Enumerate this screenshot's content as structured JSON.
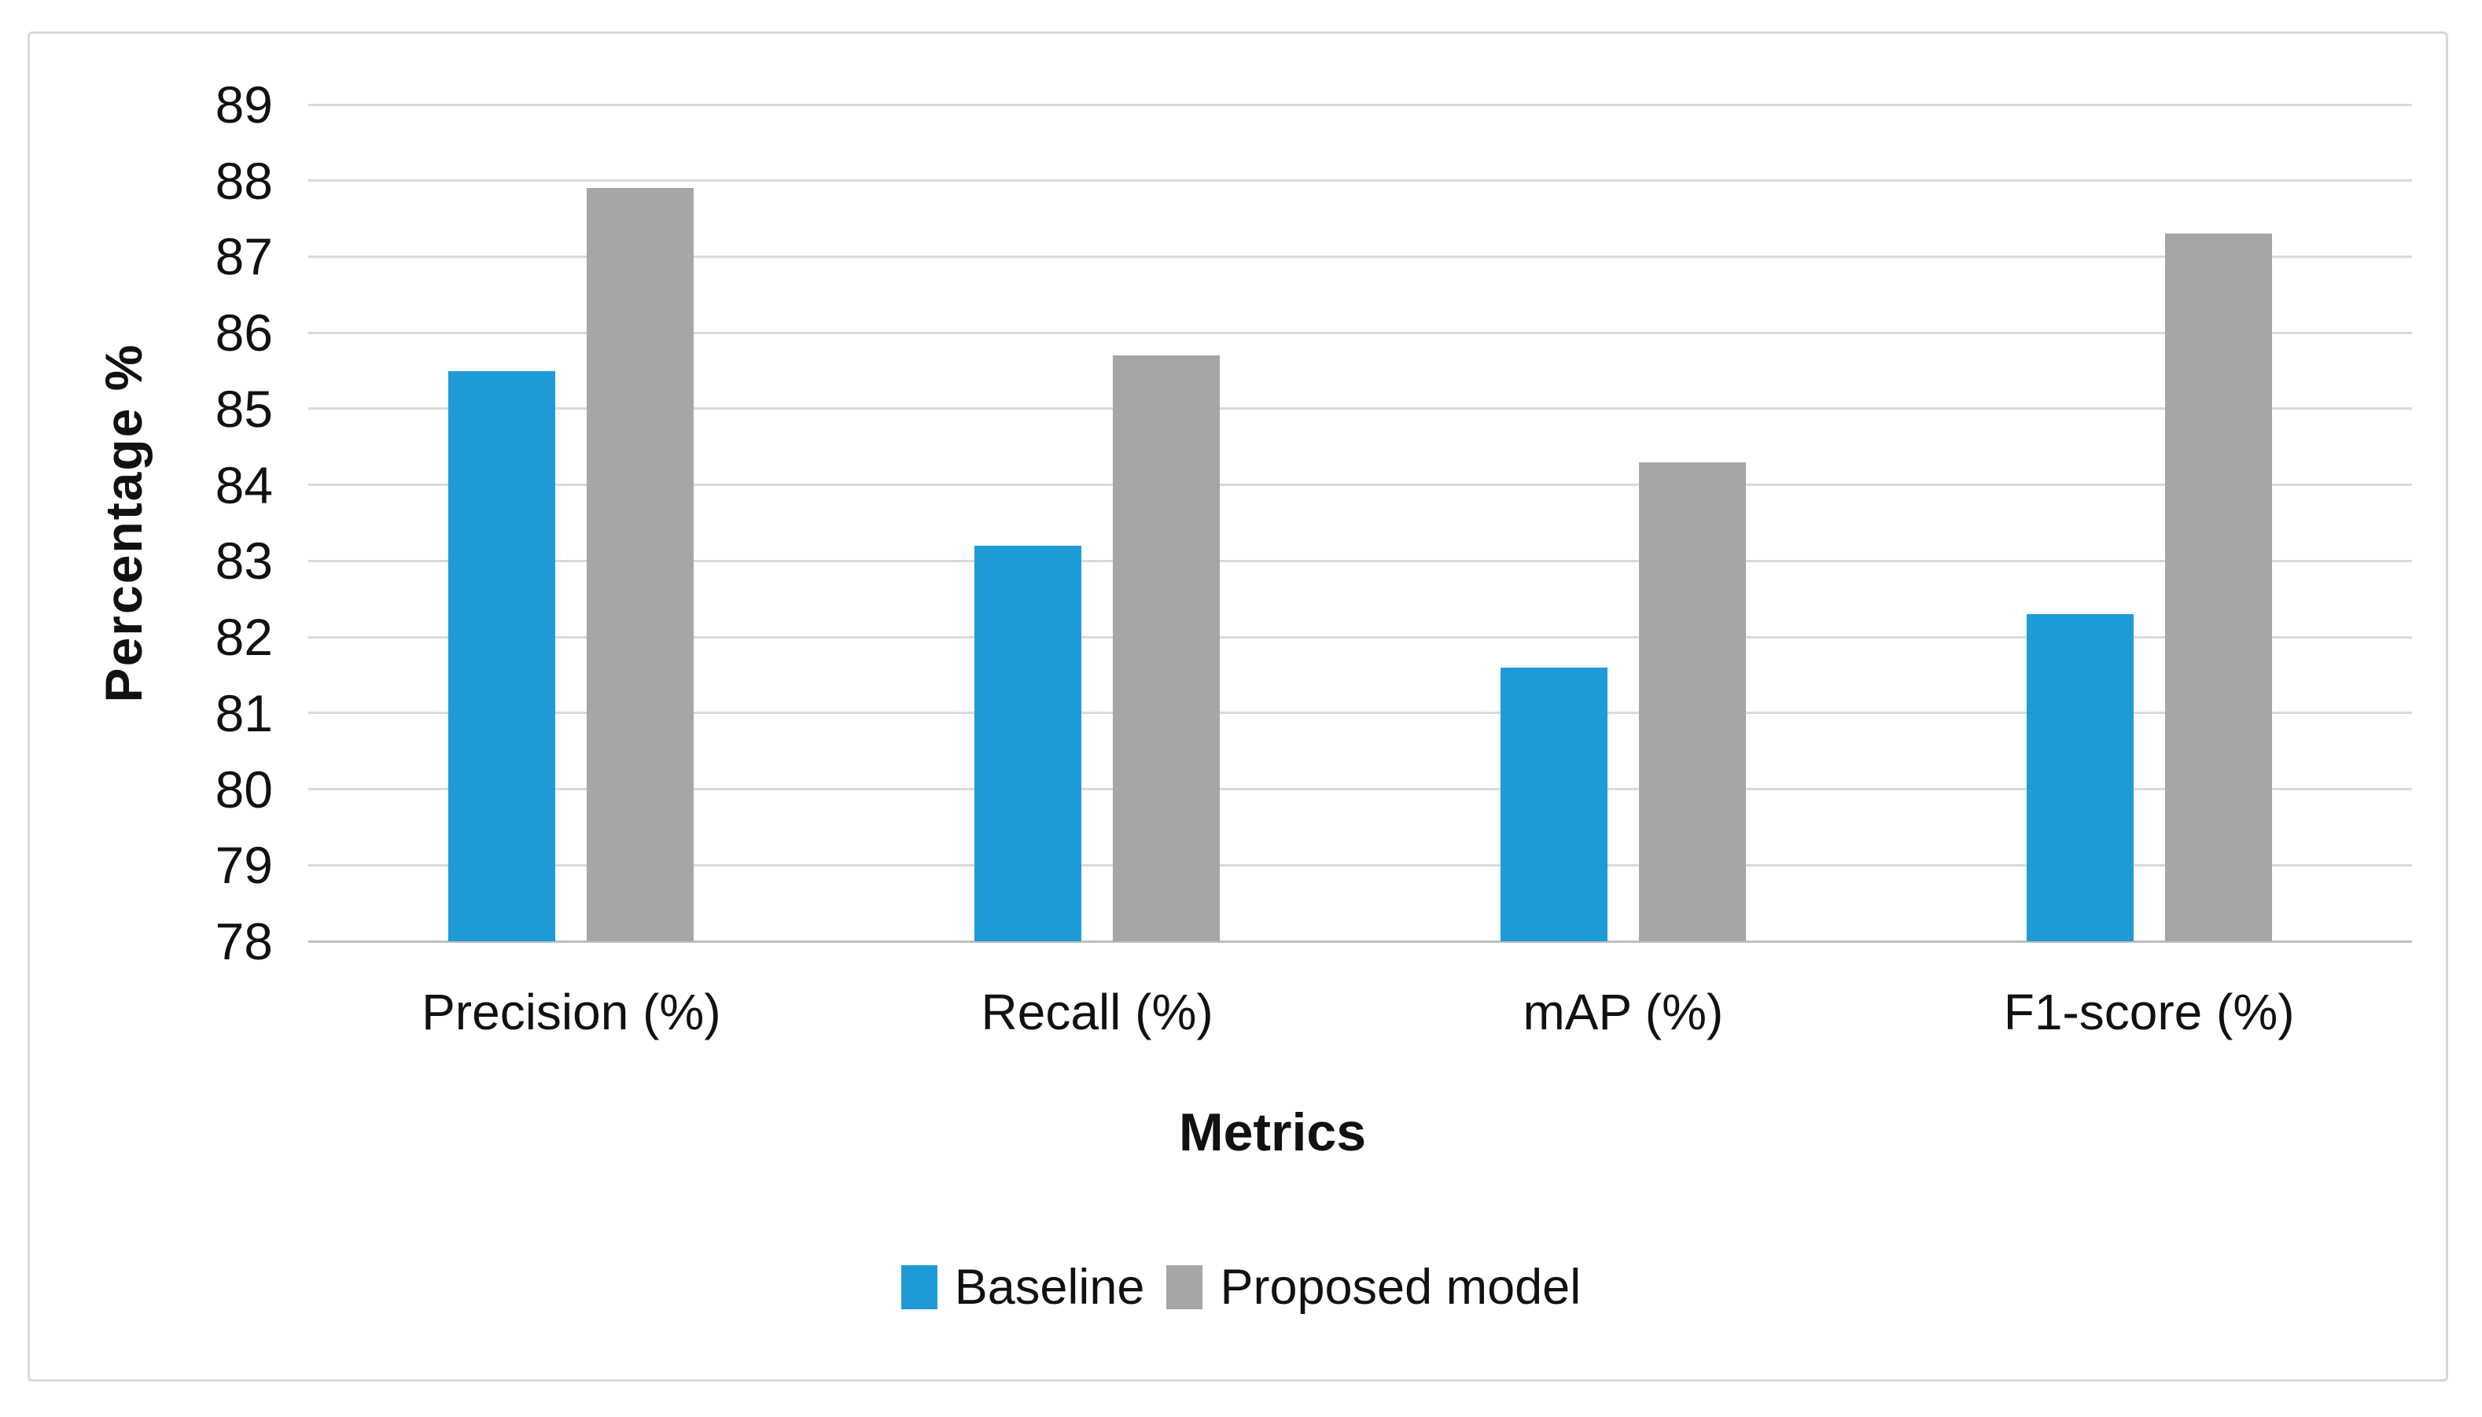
{
  "chart_data": {
    "type": "bar",
    "title": "",
    "xlabel": "Metrics",
    "ylabel": "Percentage %",
    "categories": [
      "Precision (%)",
      "Recall (%)",
      "mAP (%)",
      "F1-score (%)"
    ],
    "series": [
      {
        "name": "Baseline",
        "color": "#1E9BD7",
        "values": [
          85.5,
          83.2,
          81.6,
          82.3
        ]
      },
      {
        "name": "Proposed model",
        "color": "#A6A6A6",
        "values": [
          87.9,
          85.7,
          84.3,
          87.3
        ]
      }
    ],
    "ylim": [
      78,
      89
    ],
    "yticks": [
      78,
      79,
      80,
      81,
      82,
      83,
      84,
      85,
      86,
      87,
      88,
      89
    ],
    "grid": true,
    "legend_position": "bottom"
  },
  "style_colors": {
    "baseline_blue": "#1E9BD7",
    "proposed_gray": "#A6A6A6",
    "gridline": "#D9D9D9",
    "axis_line": "#BFBFBF",
    "frame_border": "#D9D9D9",
    "text": "#111111",
    "background": "#FFFFFF"
  }
}
